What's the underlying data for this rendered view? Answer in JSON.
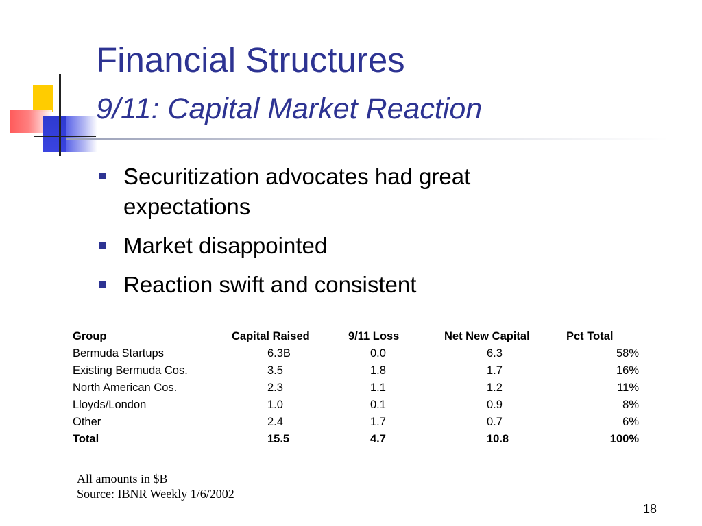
{
  "slide": {
    "title": "Financial Structures",
    "subtitle": "9/11: Capital Market Reaction",
    "bullets": [
      "Securitization advocates had great expectations",
      "Market disappointed",
      "Reaction swift and consistent"
    ],
    "table": {
      "headers": [
        "Group",
        "Capital Raised",
        "9/11 Loss",
        "Net New Capital",
        "Pct Total"
      ],
      "rows": [
        [
          "Bermuda Startups",
          "6.3B",
          "0.0",
          "6.3",
          "58%"
        ],
        [
          "Existing Bermuda Cos.",
          "3.5",
          "1.8",
          "1.7",
          "16%"
        ],
        [
          "North American Cos.",
          "2.3",
          "1.1",
          "1.2",
          "11%"
        ],
        [
          "Lloyds/London",
          "1.0",
          "0.1",
          "0.9",
          "8%"
        ],
        [
          "Other",
          "2.4",
          "1.7",
          "0.7",
          "6%"
        ],
        [
          "Total",
          "15.5",
          "4.7",
          "10.8",
          "100%"
        ]
      ]
    },
    "notes": {
      "line1": "All amounts in $B",
      "line2": "Source: IBNR Weekly 1/6/2002"
    },
    "page_number": "18"
  },
  "colors": {
    "title": "#2d3392",
    "bullet": "#2d3392",
    "deco_yellow": "#ffcc00",
    "deco_red": "#ff5a5a",
    "deco_blue": "#2e3ad0"
  }
}
